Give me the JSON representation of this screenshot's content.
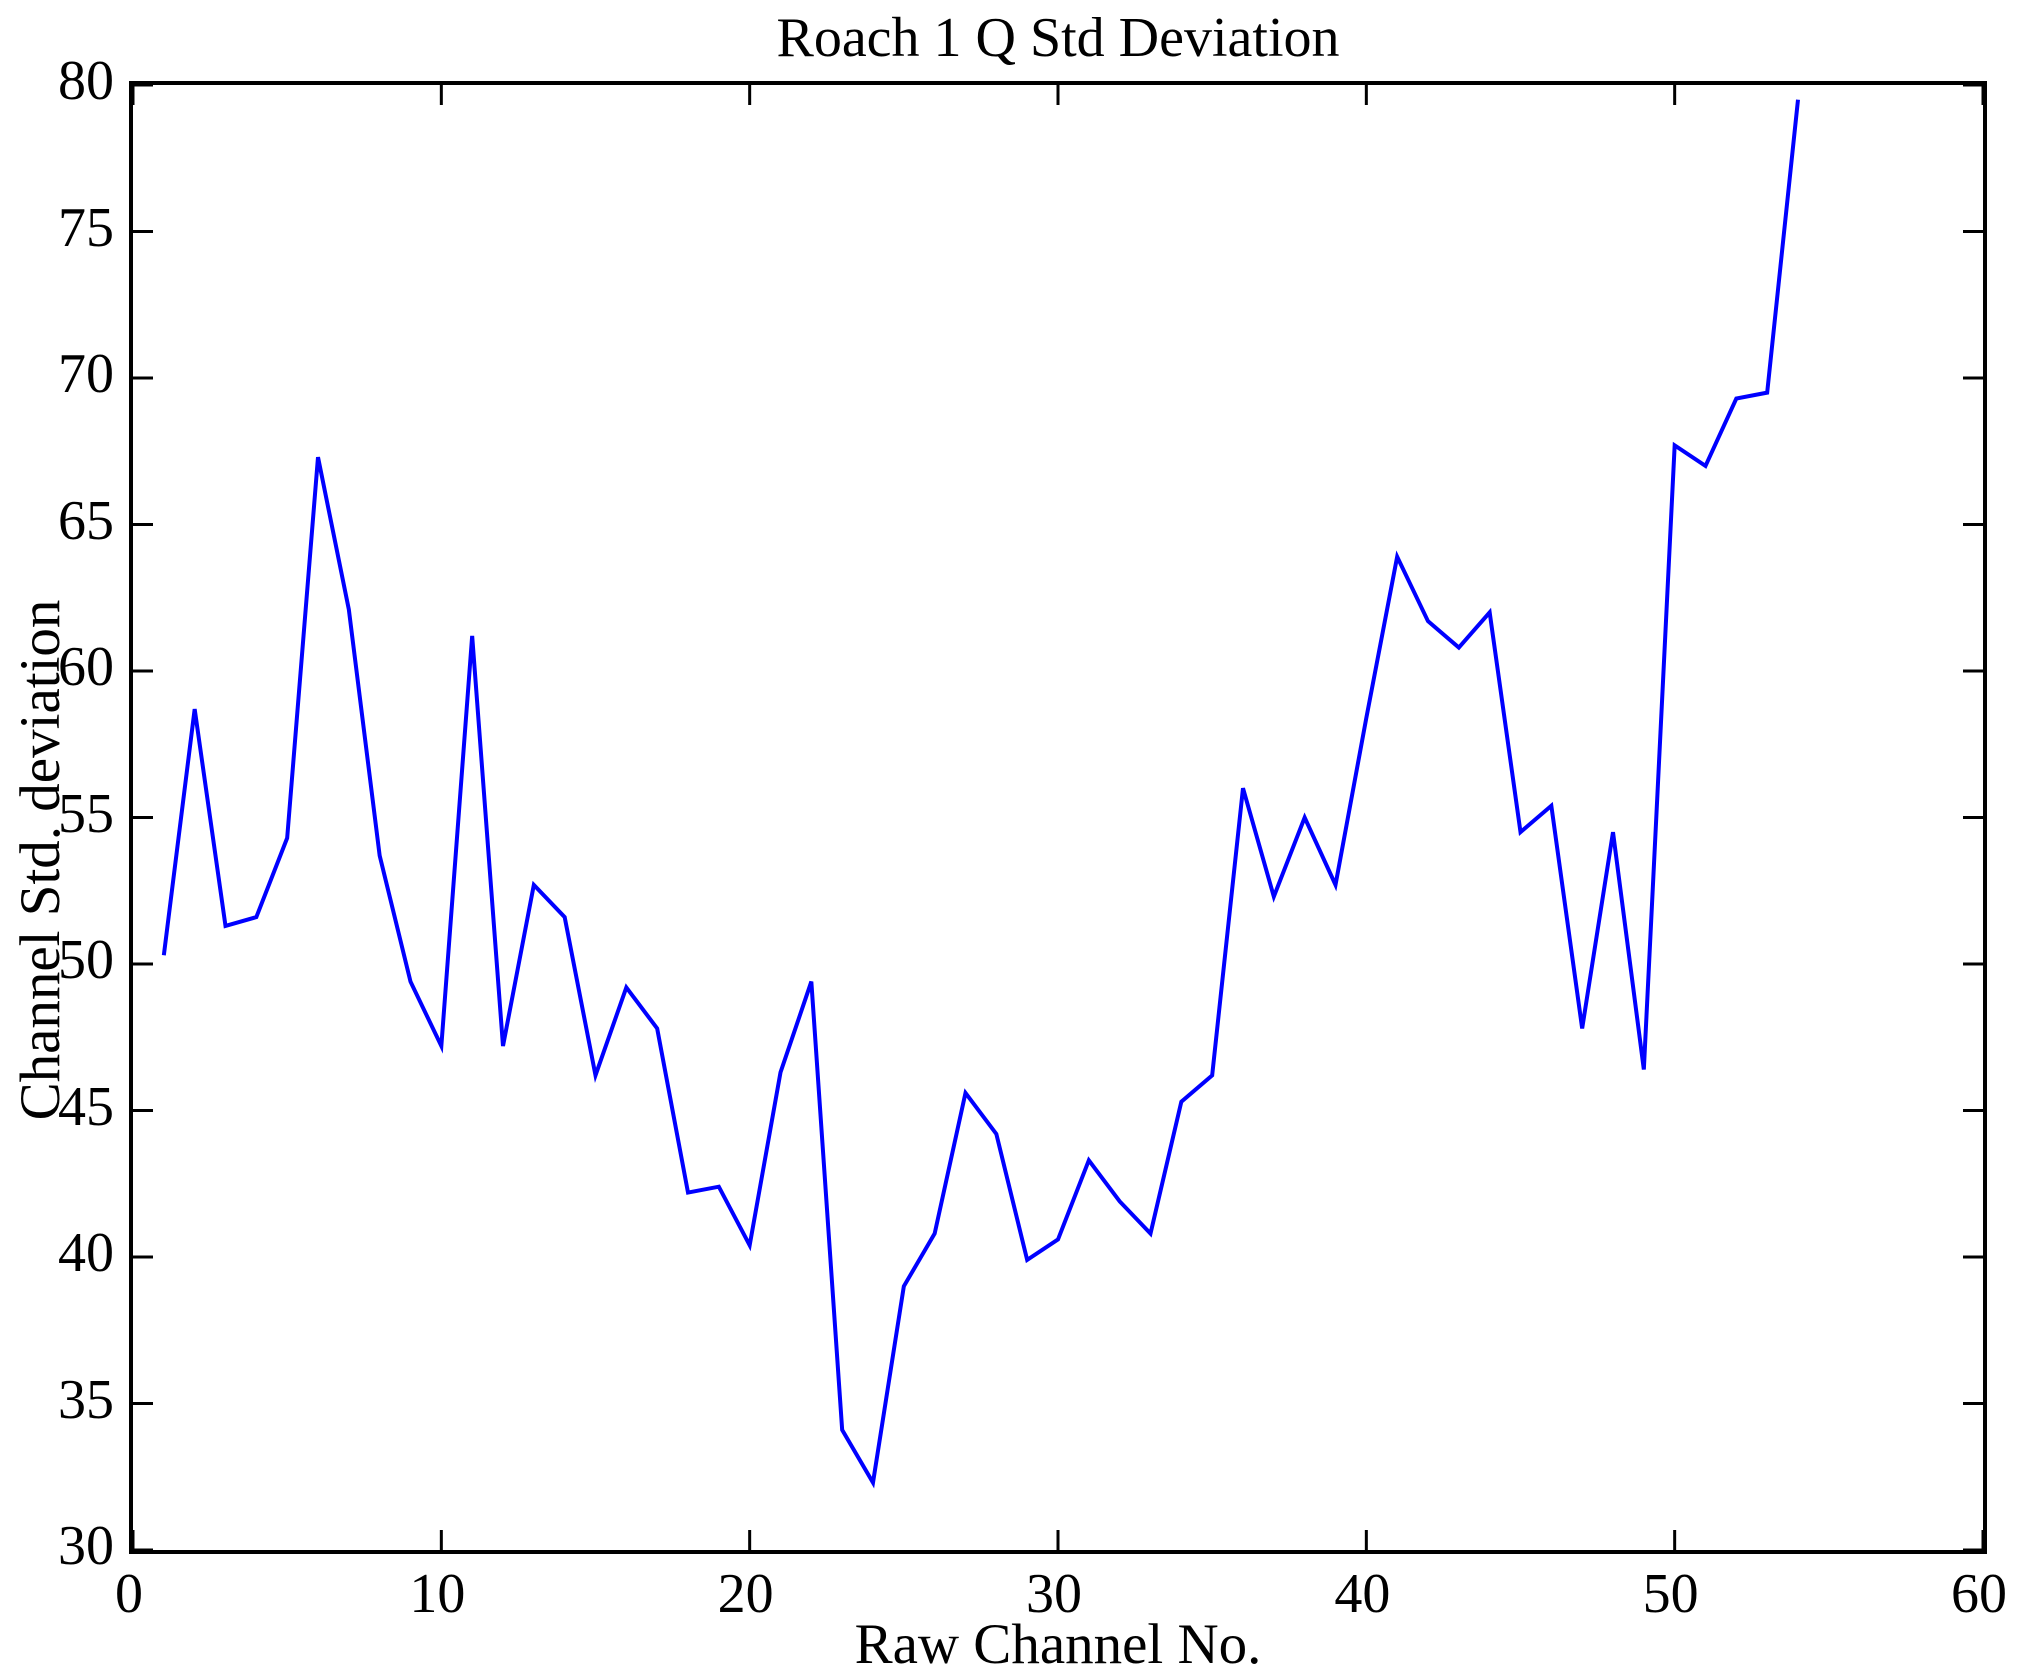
{
  "chart_data": {
    "type": "line",
    "title": "Roach 1 Q Std Deviation",
    "xlabel": "Raw Channel No.",
    "ylabel": "Channel Std. deviation",
    "xlim": [
      0,
      60
    ],
    "ylim": [
      30,
      80
    ],
    "x_ticks": [
      0,
      10,
      20,
      30,
      40,
      50,
      60
    ],
    "y_ticks": [
      30,
      35,
      40,
      45,
      50,
      55,
      60,
      65,
      70,
      75,
      80
    ],
    "grid": false,
    "legend": null,
    "line_color": "#0000ff",
    "axis_color": "#000000",
    "x": [
      1,
      2,
      3,
      4,
      5,
      6,
      7,
      8,
      9,
      10,
      11,
      12,
      13,
      14,
      15,
      16,
      17,
      18,
      19,
      20,
      21,
      22,
      23,
      24,
      25,
      26,
      27,
      28,
      29,
      30,
      31,
      32,
      33,
      34,
      35,
      36,
      37,
      38,
      39,
      40,
      41,
      42,
      43,
      44,
      45,
      46,
      47,
      48,
      49,
      50,
      51,
      52,
      53,
      54
    ],
    "values": [
      50.3,
      58.7,
      51.3,
      51.6,
      54.3,
      67.3,
      62.1,
      53.7,
      49.4,
      47.2,
      61.2,
      47.2,
      52.7,
      51.6,
      46.2,
      49.2,
      47.8,
      42.2,
      42.4,
      40.4,
      46.3,
      49.4,
      34.1,
      32.3,
      39.0,
      40.8,
      45.6,
      44.2,
      39.9,
      40.6,
      43.3,
      41.9,
      40.8,
      45.3,
      46.2,
      56.0,
      52.3,
      55.0,
      52.7,
      58.4,
      63.9,
      61.7,
      60.8,
      62.0,
      54.5,
      55.4,
      47.8,
      54.5,
      46.4,
      67.7,
      67.0,
      69.3,
      69.5,
      79.5
    ]
  }
}
